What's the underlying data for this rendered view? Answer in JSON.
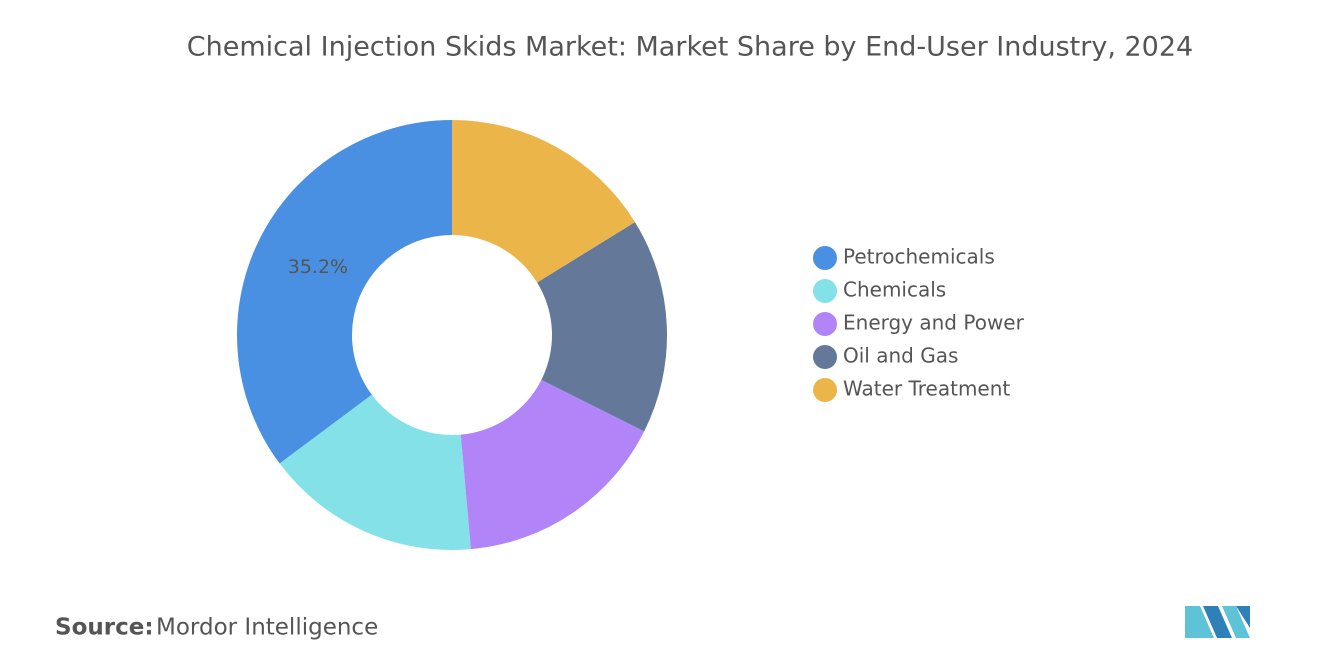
{
  "chart_data": {
    "type": "pie",
    "title": "Chemical Injection Skids Market: Market Share by End-User Industry, 2024",
    "categories": [
      "Petrochemicals",
      "Chemicals",
      "Energy and Power",
      "Oil and Gas",
      "Water Treatment"
    ],
    "values": [
      35.2,
      16.2,
      16.2,
      16.2,
      16.2
    ],
    "value_labels": [
      "35.2%",
      null,
      null,
      null,
      null
    ],
    "colors": [
      "#4a90e2",
      "#84e1e8",
      "#b185f7",
      "#64789a",
      "#ebb54a"
    ],
    "donut": true,
    "legend": "right",
    "source_label": "Source:",
    "source": "Mordor Intelligence"
  }
}
